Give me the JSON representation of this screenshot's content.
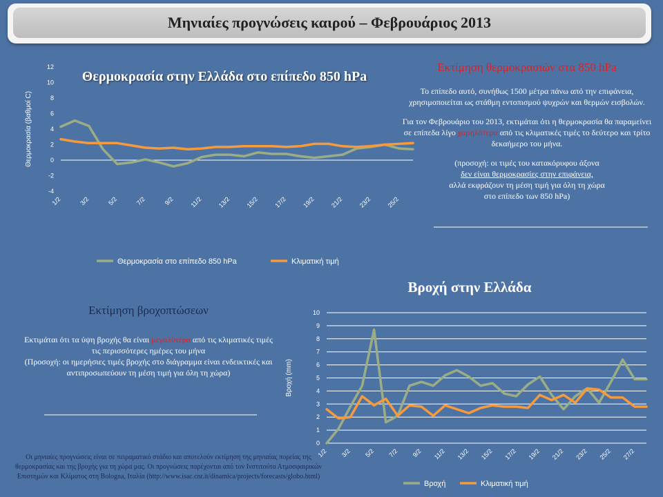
{
  "banner": {
    "title": "Μηνιαίες προγνώσεις καιρού – Φεβρουάριος 2013"
  },
  "temp_estimate": {
    "heading": "Εκτίμηση θερμοκρασιών στα 850 hPa",
    "p1": "Το επίπεδο αυτό, συνήθως 1500 μέτρα πάνω από την επιφάνεια, χρησιμοποιείται ως στάθμη εντοπισμού ψυχρών και θερμών εισβολών.",
    "p2_before": "Για τον Φεβρουάριο του 2013, εκτιμάται ότι η θερμοκρασία θα παραμείνει σε επίπεδα λίγο ",
    "p2_highlight": "χαμηλότερα",
    "p2_after": " από τις κλιματικές τιμές το δεύτερο και τρίτο δεκαήμερο του μήνα.",
    "p3_line1": "(προσοχή: οι τιμές του κατακόρυφου άξονα",
    "p3_line2": "δεν είναι θερμοκρασίες στην επιφάνεια,",
    "p3_line3": "αλλά εκφράζουν τη μέση τιμή για όλη τη χώρα",
    "p3_line4": "στο επίπεδο των 850 hPa)"
  },
  "rain_estimate": {
    "heading": "Εκτίμηση βροχοπτώσεων",
    "p1_before": "Εκτιμάται ότι τα ύψη βροχής θα είναι ",
    "p1_highlight": "μεγαλύτερα",
    "p1_after": " από τις κλιματικές τιμές τις περισσότερες ημέρες του μήνα",
    "p2": "(Προσοχή: οι ημερήσιες τιμές βροχής στο διάγραμμα είναι ενδεικτικές και αντιπροσωπεύουν τη μέση τιμή για όλη τη χώρα)"
  },
  "footnote": "Οι μηνιαίες προγνώσεις είναι σε πειραματικό στάδιο και αποτελούν εκτίμηση της μηνιαίας πορείας της θερμοκρασίας και της βροχής για τη χώρα μας. Οι προγνώσεις παρέχονται από τον Ινστιτούτο Ατμοσφαιρικών Επιστημών και Κλίματος στη Bologna, Ιταλία (http://www.isac.cnr.it/dinamica/projects/forecasts/globo.html)",
  "colors": {
    "forecast": "#9bad85",
    "climate": "#f79a3c",
    "grid": "#ffffff",
    "background": "#4d73a5"
  },
  "chart_data": [
    {
      "type": "line",
      "title": "Θερμοκρασία στην Ελλάδα στο επίπεδο 850 hPa",
      "ylabel": "Θερμοκρασία (βαθμοί C)",
      "xlabel": "",
      "ylim": [
        -4,
        12
      ],
      "yticks": [
        -4,
        -2,
        0,
        2,
        4,
        6,
        8,
        10,
        12
      ],
      "grid": false,
      "legend": "bottom",
      "x": [
        "1/2",
        "2/2",
        "3/2",
        "4/2",
        "5/2",
        "6/2",
        "7/2",
        "8/2",
        "9/2",
        "10/2",
        "11/2",
        "12/2",
        "13/2",
        "14/2",
        "15/2",
        "16/2",
        "17/2",
        "18/2",
        "19/2",
        "20/2",
        "21/2",
        "22/2",
        "23/2",
        "24/2",
        "25/2",
        "26/2"
      ],
      "xtick_labels": [
        "1/2",
        "3/2",
        "5/2",
        "7/2",
        "9/2",
        "11/2",
        "13/2",
        "15/2",
        "17/2",
        "19/2",
        "21/2",
        "23/2",
        "25/2"
      ],
      "series": [
        {
          "name": "Θερμοκρασία στο επίπεδο 850 hPa",
          "color": "#9bad85",
          "values": [
            4.3,
            5.1,
            4.4,
            1.4,
            -0.5,
            -0.3,
            0.1,
            -0.3,
            -0.8,
            -0.4,
            0.4,
            0.7,
            0.7,
            0.5,
            1.0,
            0.8,
            0.8,
            0.5,
            0.3,
            0.5,
            0.7,
            1.5,
            1.7,
            2.0,
            1.5,
            1.4
          ]
        },
        {
          "name": "Κλιματική τιμή",
          "color": "#f79a3c",
          "values": [
            2.7,
            2.4,
            2.2,
            2.2,
            2.2,
            1.9,
            1.6,
            1.5,
            1.6,
            1.4,
            1.5,
            1.7,
            1.7,
            1.8,
            1.8,
            1.8,
            1.7,
            1.8,
            2.1,
            2.1,
            1.8,
            1.7,
            1.8,
            2.0,
            2.1,
            2.2
          ]
        }
      ]
    },
    {
      "type": "line",
      "title": "Βροχή στην Ελλάδα",
      "ylabel": "Βροχή (mm)",
      "xlabel": "",
      "ylim": [
        0,
        10
      ],
      "yticks": [
        0,
        1,
        2,
        3,
        4,
        5,
        6,
        7,
        8,
        9,
        10
      ],
      "grid": true,
      "legend": "bottom",
      "x": [
        "1/2",
        "2/2",
        "3/2",
        "4/2",
        "5/2",
        "6/2",
        "7/2",
        "8/2",
        "9/2",
        "10/2",
        "11/2",
        "12/2",
        "13/2",
        "14/2",
        "15/2",
        "16/2",
        "17/2",
        "18/2",
        "19/2",
        "20/2",
        "21/2",
        "22/2",
        "23/2",
        "24/2",
        "25/2",
        "26/2",
        "27/2",
        "28/2"
      ],
      "xtick_labels": [
        "1/2",
        "3/2",
        "5/2",
        "7/2",
        "9/2",
        "11/2",
        "13/2",
        "15/2",
        "17/2",
        "19/2",
        "21/2",
        "23/2",
        "25/2",
        "27/2"
      ],
      "series": [
        {
          "name": "Βροχή",
          "color": "#9bad85",
          "values": [
            0.0,
            1.1,
            2.8,
            4.4,
            8.7,
            1.6,
            2.1,
            4.4,
            4.7,
            4.4,
            5.2,
            5.6,
            5.1,
            4.4,
            4.6,
            3.8,
            3.6,
            4.5,
            5.1,
            3.7,
            2.6,
            3.6,
            4.2,
            3.1,
            4.7,
            6.4,
            4.9,
            4.9
          ]
        },
        {
          "name": "Κλιματική τιμή",
          "color": "#f79a3c",
          "values": [
            2.6,
            1.9,
            2.0,
            3.6,
            2.9,
            3.4,
            2.1,
            2.9,
            2.8,
            2.1,
            2.9,
            2.6,
            2.3,
            2.7,
            2.9,
            2.8,
            2.8,
            2.7,
            3.7,
            3.3,
            3.7,
            3.1,
            4.2,
            4.1,
            3.5,
            3.5,
            2.8,
            2.8
          ]
        }
      ]
    }
  ]
}
